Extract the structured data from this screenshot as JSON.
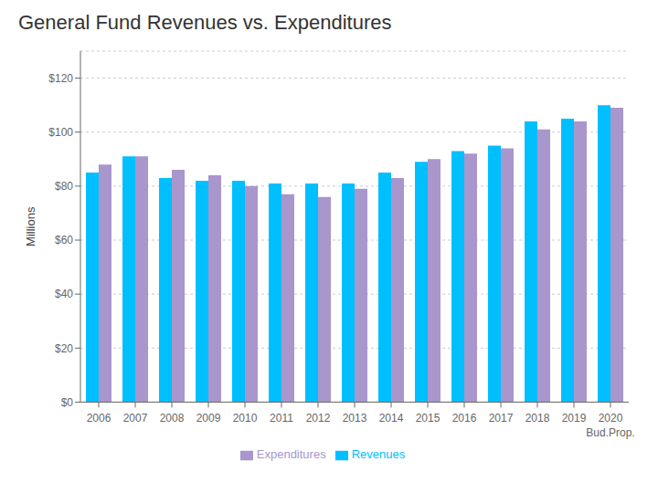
{
  "chart_data": {
    "type": "bar",
    "title": "General Fund Revenues vs. Expenditures",
    "y_label": "Millions",
    "categories": [
      "2006",
      "2007",
      "2008",
      "2009",
      "2010",
      "2011",
      "2012",
      "2013",
      "2014",
      "2015",
      "2016",
      "2017",
      "2018",
      "2019",
      "2020"
    ],
    "series": [
      {
        "name": "Revenues",
        "color": "#00BFFF",
        "values": [
          85,
          91,
          83,
          82,
          82,
          81,
          81,
          81,
          85,
          89,
          93,
          95,
          104,
          105,
          110
        ]
      },
      {
        "name": "Expenditures",
        "color": "#A896CC",
        "values": [
          88,
          91,
          86,
          84,
          80,
          77,
          76,
          79,
          83,
          90,
          92,
          94,
          101,
          104,
          109
        ]
      }
    ],
    "annotations": [
      {
        "text": "Bud.Prop.",
        "x": "2020"
      }
    ],
    "ylim": [
      0,
      130
    ],
    "yticks": [
      {
        "value": 0,
        "label": "$0"
      },
      {
        "value": 20,
        "label": "$20"
      },
      {
        "value": 40,
        "label": "$40"
      },
      {
        "value": 60,
        "label": "$60"
      },
      {
        "value": 80,
        "label": "$80"
      },
      {
        "value": 100,
        "label": "$100"
      },
      {
        "value": 120,
        "label": "$120"
      }
    ],
    "grid": true,
    "legend": "bottom"
  }
}
